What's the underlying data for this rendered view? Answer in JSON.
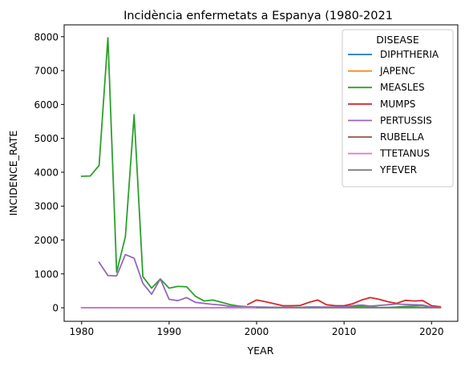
{
  "chart_data": {
    "type": "line",
    "title": "Incidència enfermetats a Espanya (1980-2021",
    "xlabel": "YEAR",
    "ylabel": "INCIDENCE_RATE",
    "xlim": [
      1978,
      2023
    ],
    "ylim": [
      -400,
      8350
    ],
    "xticks": [
      1980,
      1990,
      2000,
      2010,
      2020
    ],
    "yticks": [
      0,
      1000,
      2000,
      3000,
      4000,
      5000,
      6000,
      7000,
      8000
    ],
    "grid": false,
    "legend": {
      "title": "DISEASE",
      "position": "top-right"
    },
    "series": [
      {
        "name": "DIPHTHERIA",
        "color": "#1f77b4",
        "x": [
          1980,
          1981,
          1982,
          1983,
          1984,
          1985,
          1986,
          1987,
          1988,
          1989,
          1990,
          1991,
          1992,
          1993,
          1994,
          1995,
          1996,
          1997,
          1998,
          1999,
          2000,
          2001,
          2002,
          2003,
          2004,
          2005,
          2006,
          2007,
          2008,
          2009,
          2010,
          2011,
          2012,
          2013,
          2014,
          2015,
          2016,
          2017,
          2018,
          2019,
          2020,
          2021
        ],
        "y": [
          1,
          0,
          0,
          0,
          0,
          0,
          0,
          0,
          0,
          0,
          0,
          0,
          0,
          0,
          0,
          0,
          0,
          0,
          0,
          0,
          0,
          0,
          0,
          0,
          0,
          0,
          0,
          0,
          0,
          0,
          0,
          0,
          0,
          0,
          0,
          0,
          0,
          0,
          0,
          0,
          0,
          0
        ]
      },
      {
        "name": "JAPENC",
        "color": "#ff7f0e",
        "x": [
          2000,
          2005,
          2010,
          2015,
          2021
        ],
        "y": [
          0,
          0,
          0,
          0,
          0
        ]
      },
      {
        "name": "MEASLES",
        "color": "#2ca02c",
        "x": [
          1980,
          1981,
          1982,
          1983,
          1984,
          1985,
          1986,
          1987,
          1988,
          1989,
          1990,
          1991,
          1992,
          1993,
          1994,
          1995,
          1996,
          1997,
          1998,
          1999,
          2000,
          2001,
          2002,
          2003,
          2004,
          2005,
          2006,
          2007,
          2008,
          2009,
          2010,
          2011,
          2012,
          2013,
          2014,
          2015,
          2016,
          2017,
          2018,
          2019,
          2020,
          2021
        ],
        "y": [
          3880,
          3890,
          4200,
          7970,
          1050,
          2100,
          5700,
          920,
          580,
          850,
          580,
          630,
          620,
          340,
          200,
          230,
          160,
          90,
          50,
          30,
          20,
          10,
          10,
          10,
          10,
          15,
          20,
          20,
          10,
          15,
          20,
          40,
          50,
          30,
          10,
          10,
          20,
          40,
          50,
          60,
          10,
          5
        ]
      },
      {
        "name": "MUMPS",
        "color": "#d62728",
        "x": [
          1999,
          2000,
          2001,
          2002,
          2003,
          2004,
          2005,
          2006,
          2007,
          2008,
          2009,
          2010,
          2011,
          2012,
          2013,
          2014,
          2015,
          2016,
          2017,
          2018,
          2019,
          2020,
          2021
        ],
        "y": [
          100,
          230,
          180,
          120,
          60,
          60,
          70,
          160,
          230,
          90,
          60,
          60,
          120,
          230,
          300,
          250,
          180,
          130,
          220,
          200,
          210,
          60,
          30
        ]
      },
      {
        "name": "PERTUSSIS",
        "color": "#9467bd",
        "x": [
          1982,
          1983,
          1984,
          1985,
          1986,
          1987,
          1988,
          1989,
          1990,
          1991,
          1992,
          1993,
          1994,
          1995,
          1996,
          1997,
          1998,
          1999,
          2000,
          2001,
          2002,
          2003,
          2004,
          2005,
          2006,
          2007,
          2008,
          2009,
          2010,
          2011,
          2012,
          2013,
          2014,
          2015,
          2016,
          2017,
          2018,
          2019,
          2020,
          2021
        ],
        "y": [
          1340,
          950,
          940,
          1570,
          1460,
          720,
          400,
          850,
          250,
          210,
          300,
          160,
          130,
          100,
          80,
          40,
          20,
          20,
          20,
          20,
          15,
          15,
          15,
          15,
          20,
          20,
          20,
          20,
          30,
          60,
          80,
          50,
          70,
          90,
          110,
          100,
          90,
          80,
          20,
          10
        ]
      },
      {
        "name": "RUBELLA",
        "color": "#8c564b",
        "x": [
          2000,
          2005,
          2010,
          2015,
          2021
        ],
        "y": [
          5,
          3,
          2,
          1,
          0
        ]
      },
      {
        "name": "TTETANUS",
        "color": "#e377c2",
        "x": [
          1980,
          1985,
          1990,
          1995,
          2000,
          2005,
          2010,
          2015,
          2021
        ],
        "y": [
          5,
          3,
          2,
          1,
          1,
          1,
          1,
          0,
          0
        ]
      },
      {
        "name": "YFEVER",
        "color": "#7f7f7f",
        "x": [
          2000,
          2005,
          2010,
          2015,
          2021
        ],
        "y": [
          0,
          0,
          0,
          0,
          0
        ]
      }
    ]
  }
}
